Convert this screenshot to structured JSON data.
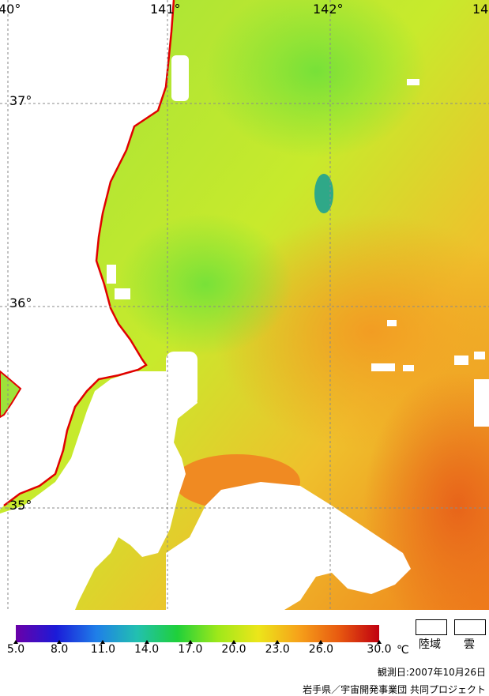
{
  "map": {
    "lon_labels": [
      "40°",
      "141°",
      "142°",
      "14"
    ],
    "lat_labels": [
      "37°",
      "36°",
      "35°"
    ],
    "coastline_color": "#e00000",
    "land_color": "#ffffff",
    "grid_style": "dashed gray",
    "sea_colors": {
      "cool": "#7fe03a",
      "mid": "#d8ec2a",
      "warm": "#f2b62a",
      "hot": "#ef7a1c",
      "channel": "#2fb06a"
    }
  },
  "colorbar": {
    "ticks": [
      "5.0",
      "8.0",
      "11.0",
      "14.0",
      "17.0",
      "20.0",
      "23.0",
      "26.0",
      "30.0"
    ],
    "unit": "℃",
    "colors": [
      "#6a00a8",
      "#1b1bd8",
      "#1f7fe8",
      "#22c0b0",
      "#1fd03a",
      "#9ee81a",
      "#ece61a",
      "#f6a21a",
      "#e85a10",
      "#c00010"
    ]
  },
  "legend": {
    "land_label": "陸域",
    "cloud_label": "雲"
  },
  "observation_date": "観測日:2007年10月26日",
  "credit": "岩手県／宇宙開発事業団 共同プロジェクト"
}
